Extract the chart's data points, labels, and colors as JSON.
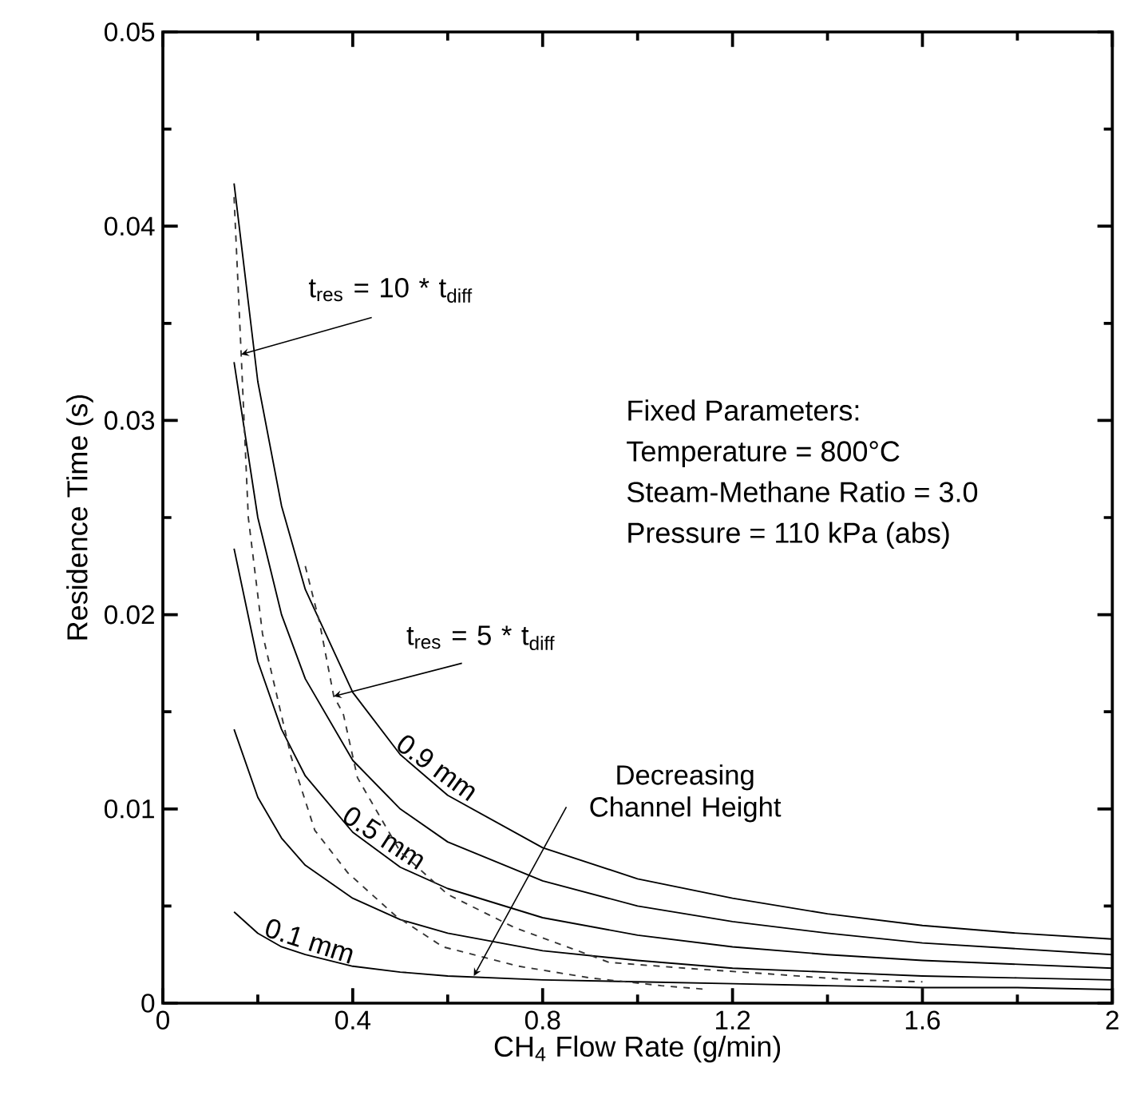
{
  "chart_data": {
    "type": "line",
    "xlabel": "CH$_{4}$ Flow Rate (g/min)",
    "ylabel": "Residence Time (s)",
    "xlim": [
      0,
      2
    ],
    "ylim": [
      0,
      0.05
    ],
    "xticks": [
      0,
      0.4,
      0.8,
      1.2,
      1.6,
      2
    ],
    "yticks": [
      0,
      0.01,
      0.02,
      0.03,
      0.04,
      0.05
    ],
    "series": [
      {
        "name": "0.9 mm",
        "color": "#000000",
        "x": [
          0.15,
          0.2,
          0.25,
          0.3,
          0.4,
          0.5,
          0.6,
          0.8,
          1.0,
          1.2,
          1.4,
          1.6,
          1.8,
          2.0
        ],
        "values": [
          0.0422,
          0.032,
          0.0256,
          0.0213,
          0.016,
          0.0128,
          0.0107,
          0.008,
          0.0064,
          0.0054,
          0.0046,
          0.004,
          0.0036,
          0.0033
        ]
      },
      {
        "color": "#000000",
        "x": [
          0.15,
          0.2,
          0.25,
          0.3,
          0.4,
          0.5,
          0.6,
          0.8,
          1.0,
          1.2,
          1.4,
          1.6,
          1.8,
          2.0
        ],
        "values": [
          0.033,
          0.025,
          0.02,
          0.0167,
          0.0125,
          0.01,
          0.0083,
          0.0063,
          0.005,
          0.0042,
          0.0036,
          0.0031,
          0.0028,
          0.0025
        ]
      },
      {
        "name": "0.5 mm",
        "color": "#000000",
        "x": [
          0.15,
          0.2,
          0.25,
          0.3,
          0.4,
          0.5,
          0.6,
          0.8,
          1.0,
          1.2,
          1.4,
          1.6,
          1.8,
          2.0
        ],
        "values": [
          0.0234,
          0.0176,
          0.0141,
          0.0117,
          0.0088,
          0.007,
          0.0059,
          0.0044,
          0.0035,
          0.0029,
          0.0025,
          0.0022,
          0.002,
          0.0018
        ]
      },
      {
        "color": "#000000",
        "x": [
          0.15,
          0.2,
          0.25,
          0.3,
          0.4,
          0.5,
          0.6,
          0.8,
          1.0,
          1.2,
          1.4,
          1.6,
          1.8,
          2.0
        ],
        "values": [
          0.0141,
          0.0106,
          0.0085,
          0.0071,
          0.0054,
          0.0043,
          0.0036,
          0.0027,
          0.0022,
          0.0018,
          0.0016,
          0.0014,
          0.0013,
          0.0012
        ]
      },
      {
        "name": "0.1 mm",
        "color": "#000000",
        "x": [
          0.15,
          0.2,
          0.25,
          0.3,
          0.4,
          0.5,
          0.6,
          0.8,
          1.0,
          1.2,
          1.4,
          1.6,
          1.8,
          2.0
        ],
        "values": [
          0.0047,
          0.0036,
          0.0029,
          0.0025,
          0.0019,
          0.0016,
          0.0014,
          0.0012,
          0.0011,
          0.001,
          0.0009,
          0.0008,
          0.0008,
          0.0007
        ]
      },
      {
        "color": "#333333",
        "line_style": "dashed",
        "x": [
          0.15,
          0.165,
          0.18,
          0.21,
          0.27,
          0.32,
          0.39,
          0.49,
          0.59,
          0.75,
          0.9,
          1.05,
          1.15
        ],
        "values": [
          0.0415,
          0.0334,
          0.025,
          0.019,
          0.0127,
          0.0089,
          0.0067,
          0.0045,
          0.0029,
          0.0019,
          0.0013,
          0.0009,
          0.0007
        ]
      },
      {
        "color": "#333333",
        "line_style": "dashed",
        "x": [
          0.3,
          0.33,
          0.36,
          0.38,
          0.41,
          0.5,
          0.6,
          0.74,
          0.94,
          1.1,
          1.28,
          1.45,
          1.6
        ],
        "values": [
          0.0225,
          0.0196,
          0.0158,
          0.0149,
          0.0116,
          0.0078,
          0.0056,
          0.0039,
          0.0021,
          0.0018,
          0.0015,
          0.0012,
          0.0011
        ]
      }
    ],
    "annotations": [
      {
        "text": "t$_{res}$ = 10 * t$_{diff}$",
        "x": 0.165,
        "y": 0.0334
      },
      {
        "text": "t$_{res}$ = 5 * t$_{diff}$",
        "x": 0.36,
        "y": 0.0158
      },
      {
        "text": "Decreasing Channel Height",
        "x": 0.655,
        "y": 0.0014
      },
      "Fixed Parameters:",
      "Temperature = 800°C",
      "Steam-Methane Ratio = 3.0",
      "Pressure = 110 kPa (abs)"
    ]
  }
}
